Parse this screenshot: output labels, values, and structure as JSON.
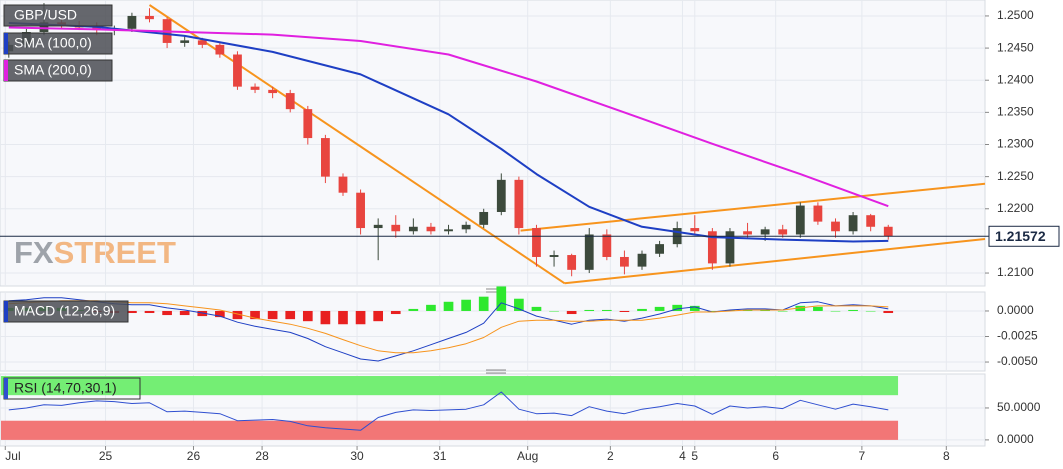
{
  "chart_data": [
    {
      "type": "candlestick",
      "title": "GBP/USD",
      "open": [
        1.2445,
        1.2455,
        1.2475,
        1.249,
        1.2485,
        1.2482,
        1.2478,
        1.248,
        1.25,
        1.2495,
        1.2458,
        1.2462,
        1.2455,
        1.244,
        1.239,
        1.2385,
        1.238,
        1.2355,
        1.231,
        1.225,
        1.2225,
        1.217,
        1.2175,
        1.2165,
        1.2172,
        1.2165,
        1.2168,
        1.2175,
        1.2195,
        1.2245,
        1.217,
        1.2125,
        1.2128,
        1.2105,
        1.216,
        1.2125,
        1.211,
        1.213,
        1.2145,
        1.217,
        1.2165,
        1.2115,
        1.2165,
        1.216,
        1.2168,
        1.216,
        1.2205,
        1.218,
        1.2165,
        1.219,
        1.2172
      ],
      "high": [
        1.246,
        1.248,
        1.252,
        1.2495,
        1.2492,
        1.249,
        1.2485,
        1.2505,
        1.2512,
        1.2498,
        1.2468,
        1.2466,
        1.246,
        1.2445,
        1.2395,
        1.239,
        1.2385,
        1.236,
        1.2315,
        1.2255,
        1.223,
        1.2185,
        1.219,
        1.2185,
        1.2178,
        1.2175,
        1.218,
        1.22,
        1.2255,
        1.225,
        1.2175,
        1.2135,
        1.213,
        1.217,
        1.2168,
        1.2135,
        1.2135,
        1.215,
        1.218,
        1.219,
        1.217,
        1.217,
        1.2178,
        1.2172,
        1.2175,
        1.221,
        1.221,
        1.2185,
        1.2195,
        1.2192,
        1.2175
      ],
      "low": [
        1.2435,
        1.245,
        1.247,
        1.248,
        1.2478,
        1.247,
        1.247,
        1.2475,
        1.249,
        1.245,
        1.2452,
        1.245,
        1.2435,
        1.2385,
        1.238,
        1.2372,
        1.235,
        1.23,
        1.224,
        1.222,
        1.216,
        1.212,
        1.2155,
        1.216,
        1.216,
        1.216,
        1.2162,
        1.217,
        1.219,
        1.216,
        1.211,
        1.211,
        1.2095,
        1.21,
        1.212,
        1.2098,
        1.2105,
        1.2125,
        1.214,
        1.216,
        1.2105,
        1.211,
        1.2155,
        1.215,
        1.2155,
        1.2155,
        1.2175,
        1.2155,
        1.216,
        1.2165,
        1.2152
      ],
      "close": [
        1.2455,
        1.2475,
        1.249,
        1.2485,
        1.2482,
        1.2478,
        1.248,
        1.25,
        1.2495,
        1.2458,
        1.2462,
        1.2455,
        1.244,
        1.239,
        1.2385,
        1.238,
        1.2355,
        1.231,
        1.225,
        1.2225,
        1.217,
        1.2175,
        1.2165,
        1.2172,
        1.2165,
        1.2168,
        1.2175,
        1.2195,
        1.2245,
        1.217,
        1.2125,
        1.2128,
        1.2105,
        1.216,
        1.2125,
        1.211,
        1.213,
        1.2145,
        1.217,
        1.2165,
        1.2115,
        1.2165,
        1.216,
        1.2168,
        1.216,
        1.2205,
        1.218,
        1.2165,
        1.219,
        1.2172,
        1.21572
      ],
      "up_color": "#3c4a3c",
      "down_color": "#e8453f",
      "series": [
        {
          "name": "SMA (100,0)",
          "color": "#1e3fc4",
          "x": [
            0,
            5,
            10,
            15,
            20,
            25,
            28,
            30,
            33,
            36,
            40,
            44,
            48,
            50
          ],
          "values": [
            1.2489,
            1.2483,
            1.2469,
            1.2444,
            1.2409,
            1.2347,
            1.2293,
            1.2254,
            1.2203,
            1.2172,
            1.2156,
            1.2152,
            1.2149,
            1.215
          ]
        },
        {
          "name": "SMA (200,0)",
          "color": "#e020e0",
          "x": [
            0,
            5,
            10,
            15,
            20,
            25,
            30,
            35,
            40,
            45,
            50
          ],
          "values": [
            1.2482,
            1.2479,
            1.2475,
            1.2471,
            1.2461,
            1.244,
            1.2398,
            1.235,
            1.2301,
            1.2254,
            1.2204
          ]
        }
      ],
      "trend_lines": [
        {
          "x": [
            8.0,
            31.6
          ],
          "y": [
            1.2517,
            1.2084
          ]
        },
        {
          "x": [
            29.1,
            55.5
          ],
          "y": [
            1.2166,
            1.2239
          ]
        },
        {
          "x": [
            31.6,
            55.5
          ],
          "y": [
            1.2084,
            1.2153
          ]
        }
      ],
      "trend_color": "#f7941d",
      "last_price": 1.21572,
      "watermark": [
        "FX",
        "STREET"
      ],
      "xlim": [
        -0.5,
        55.5
      ],
      "ylim": [
        1.20814,
        1.25248
      ],
      "yticks": [
        {
          "value": 1.25,
          "label": "1.2500"
        },
        {
          "value": 1.245,
          "label": "1.2450"
        },
        {
          "value": 1.24,
          "label": "1.2400"
        },
        {
          "value": 1.235,
          "label": "1.2350"
        },
        {
          "value": 1.23,
          "label": "1.2300"
        },
        {
          "value": 1.225,
          "label": "1.2250"
        },
        {
          "value": 1.22,
          "label": "1.2200"
        },
        {
          "value": 1.21,
          "label": "1.2100"
        }
      ],
      "grid": true
    },
    {
      "type": "macd",
      "title": "MACD (12,26,9)",
      "series": [
        {
          "name": "MACD",
          "color": "#1e3fc4",
          "values": [
            0.001,
            0.0011,
            0.0013,
            0.0013,
            0.0011,
            0.0009,
            0.0007,
            0.0006,
            0.0006,
            0.0003,
            0.0001,
            -0.0002,
            -0.0005,
            -0.0011,
            -0.0015,
            -0.0018,
            -0.0021,
            -0.0027,
            -0.0035,
            -0.0041,
            -0.0047,
            -0.0049,
            -0.0044,
            -0.0039,
            -0.0033,
            -0.0027,
            -0.0021,
            -0.0012,
            0.0008,
            0.0002,
            -0.0005,
            -0.0009,
            -0.0013,
            -0.0009,
            -0.0008,
            -0.001,
            -0.0007,
            -0.0003,
            0.0002,
            0.0004,
            -0.0001,
            0.0001,
            0.0002,
            0.0002,
            0.0001,
            0.0008,
            0.0009,
            0.0005,
            0.0006,
            0.0005,
            0.0002
          ]
        },
        {
          "name": "Signal",
          "color": "#f7941d",
          "values": [
            0.0007,
            0.0008,
            0.0009,
            0.001,
            0.001,
            0.001,
            0.0009,
            0.0008,
            0.0008,
            0.0007,
            0.0005,
            0.0003,
            0.0001,
            -0.0003,
            -0.0007,
            -0.001,
            -0.0013,
            -0.0017,
            -0.0022,
            -0.0028,
            -0.0034,
            -0.0039,
            -0.0041,
            -0.0041,
            -0.0039,
            -0.0036,
            -0.0032,
            -0.0026,
            -0.0016,
            -0.001,
            -0.0009,
            -0.0009,
            -0.001,
            -0.001,
            -0.0009,
            -0.0009,
            -0.0009,
            -0.0007,
            -0.0004,
            -0.0001,
            -0.0001,
            0.0,
            0.0001,
            0.0001,
            0.0001,
            0.0003,
            0.0005,
            0.0005,
            0.0005,
            0.0005,
            0.0004
          ]
        }
      ],
      "histogram": [
        0.0003,
        0.0003,
        0.0004,
        0.0003,
        0.0001,
        -0.0001,
        -0.0002,
        -0.0002,
        -0.0002,
        -0.0004,
        -0.0004,
        -0.0005,
        -0.0006,
        -0.0008,
        -0.0008,
        -0.0008,
        -0.0008,
        -0.001,
        -0.0013,
        -0.0013,
        -0.0013,
        -0.001,
        -0.0003,
        0.0002,
        0.0006,
        0.0009,
        0.0011,
        0.0014,
        0.0024,
        0.0012,
        0.0004,
        0.0,
        -0.0003,
        0.0001,
        0.0001,
        -0.0001,
        0.0002,
        0.0004,
        0.0006,
        0.0005,
        0.0,
        0.0001,
        0.0001,
        0.0001,
        0.0,
        0.0005,
        0.0004,
        0.0,
        0.0001,
        0.0,
        -0.0002
      ],
      "histogram_colors": [
        "#2ee82e",
        "#e82020"
      ],
      "xlim": [
        -0.5,
        55.5
      ],
      "ylim": [
        -0.00578,
        0.00176
      ],
      "yticks": [
        {
          "value": 0,
          "label": "0.0000"
        },
        {
          "value": -0.0025,
          "label": "-0.0025"
        },
        {
          "value": -0.005,
          "label": "-0.0050"
        }
      ],
      "grid": true
    },
    {
      "type": "rsi",
      "title": "RSI (14,70,30,1)",
      "series": [
        {
          "name": "RSI",
          "color": "#2f4fd0",
          "values": [
            47,
            50,
            55,
            54,
            58,
            61,
            60,
            57,
            58,
            44,
            45,
            43,
            41,
            30,
            31,
            32,
            29,
            22,
            19,
            17,
            15,
            35,
            43,
            47,
            46,
            47,
            48,
            55,
            75,
            48,
            41,
            42,
            38,
            52,
            45,
            41,
            48,
            52,
            57,
            53,
            40,
            53,
            50,
            52,
            49,
            62,
            55,
            48,
            56,
            52,
            47
          ]
        }
      ],
      "zones": [
        {
          "range": [
            70,
            100
          ],
          "color": "#74ee74"
        },
        {
          "range": [
            0,
            30
          ],
          "color": "#f27676"
        }
      ],
      "xlim": [
        -0.5,
        55.5
      ],
      "ylim": [
        -8,
        101.6
      ],
      "yticks": [
        {
          "value": 50,
          "label": "50.0000"
        },
        {
          "value": 0,
          "label": "0.0000"
        }
      ],
      "xticks": [
        {
          "value": -0.2,
          "label": "Jul"
        },
        {
          "value": 5.5,
          "label": "25"
        },
        {
          "value": 10.5,
          "label": "26"
        },
        {
          "value": 14.4,
          "label": "28"
        },
        {
          "value": 19.8,
          "label": "30"
        },
        {
          "value": 24.5,
          "label": "31"
        },
        {
          "value": 29.5,
          "label": "Aug"
        },
        {
          "value": 34.2,
          "label": "2"
        },
        {
          "value": 38.3,
          "label": "4"
        },
        {
          "value": 39.0,
          "label": "5"
        },
        {
          "value": 43.6,
          "label": "6"
        },
        {
          "value": 48.5,
          "label": "7"
        },
        {
          "value": 53.3,
          "label": "8"
        }
      ],
      "grid": true
    }
  ]
}
